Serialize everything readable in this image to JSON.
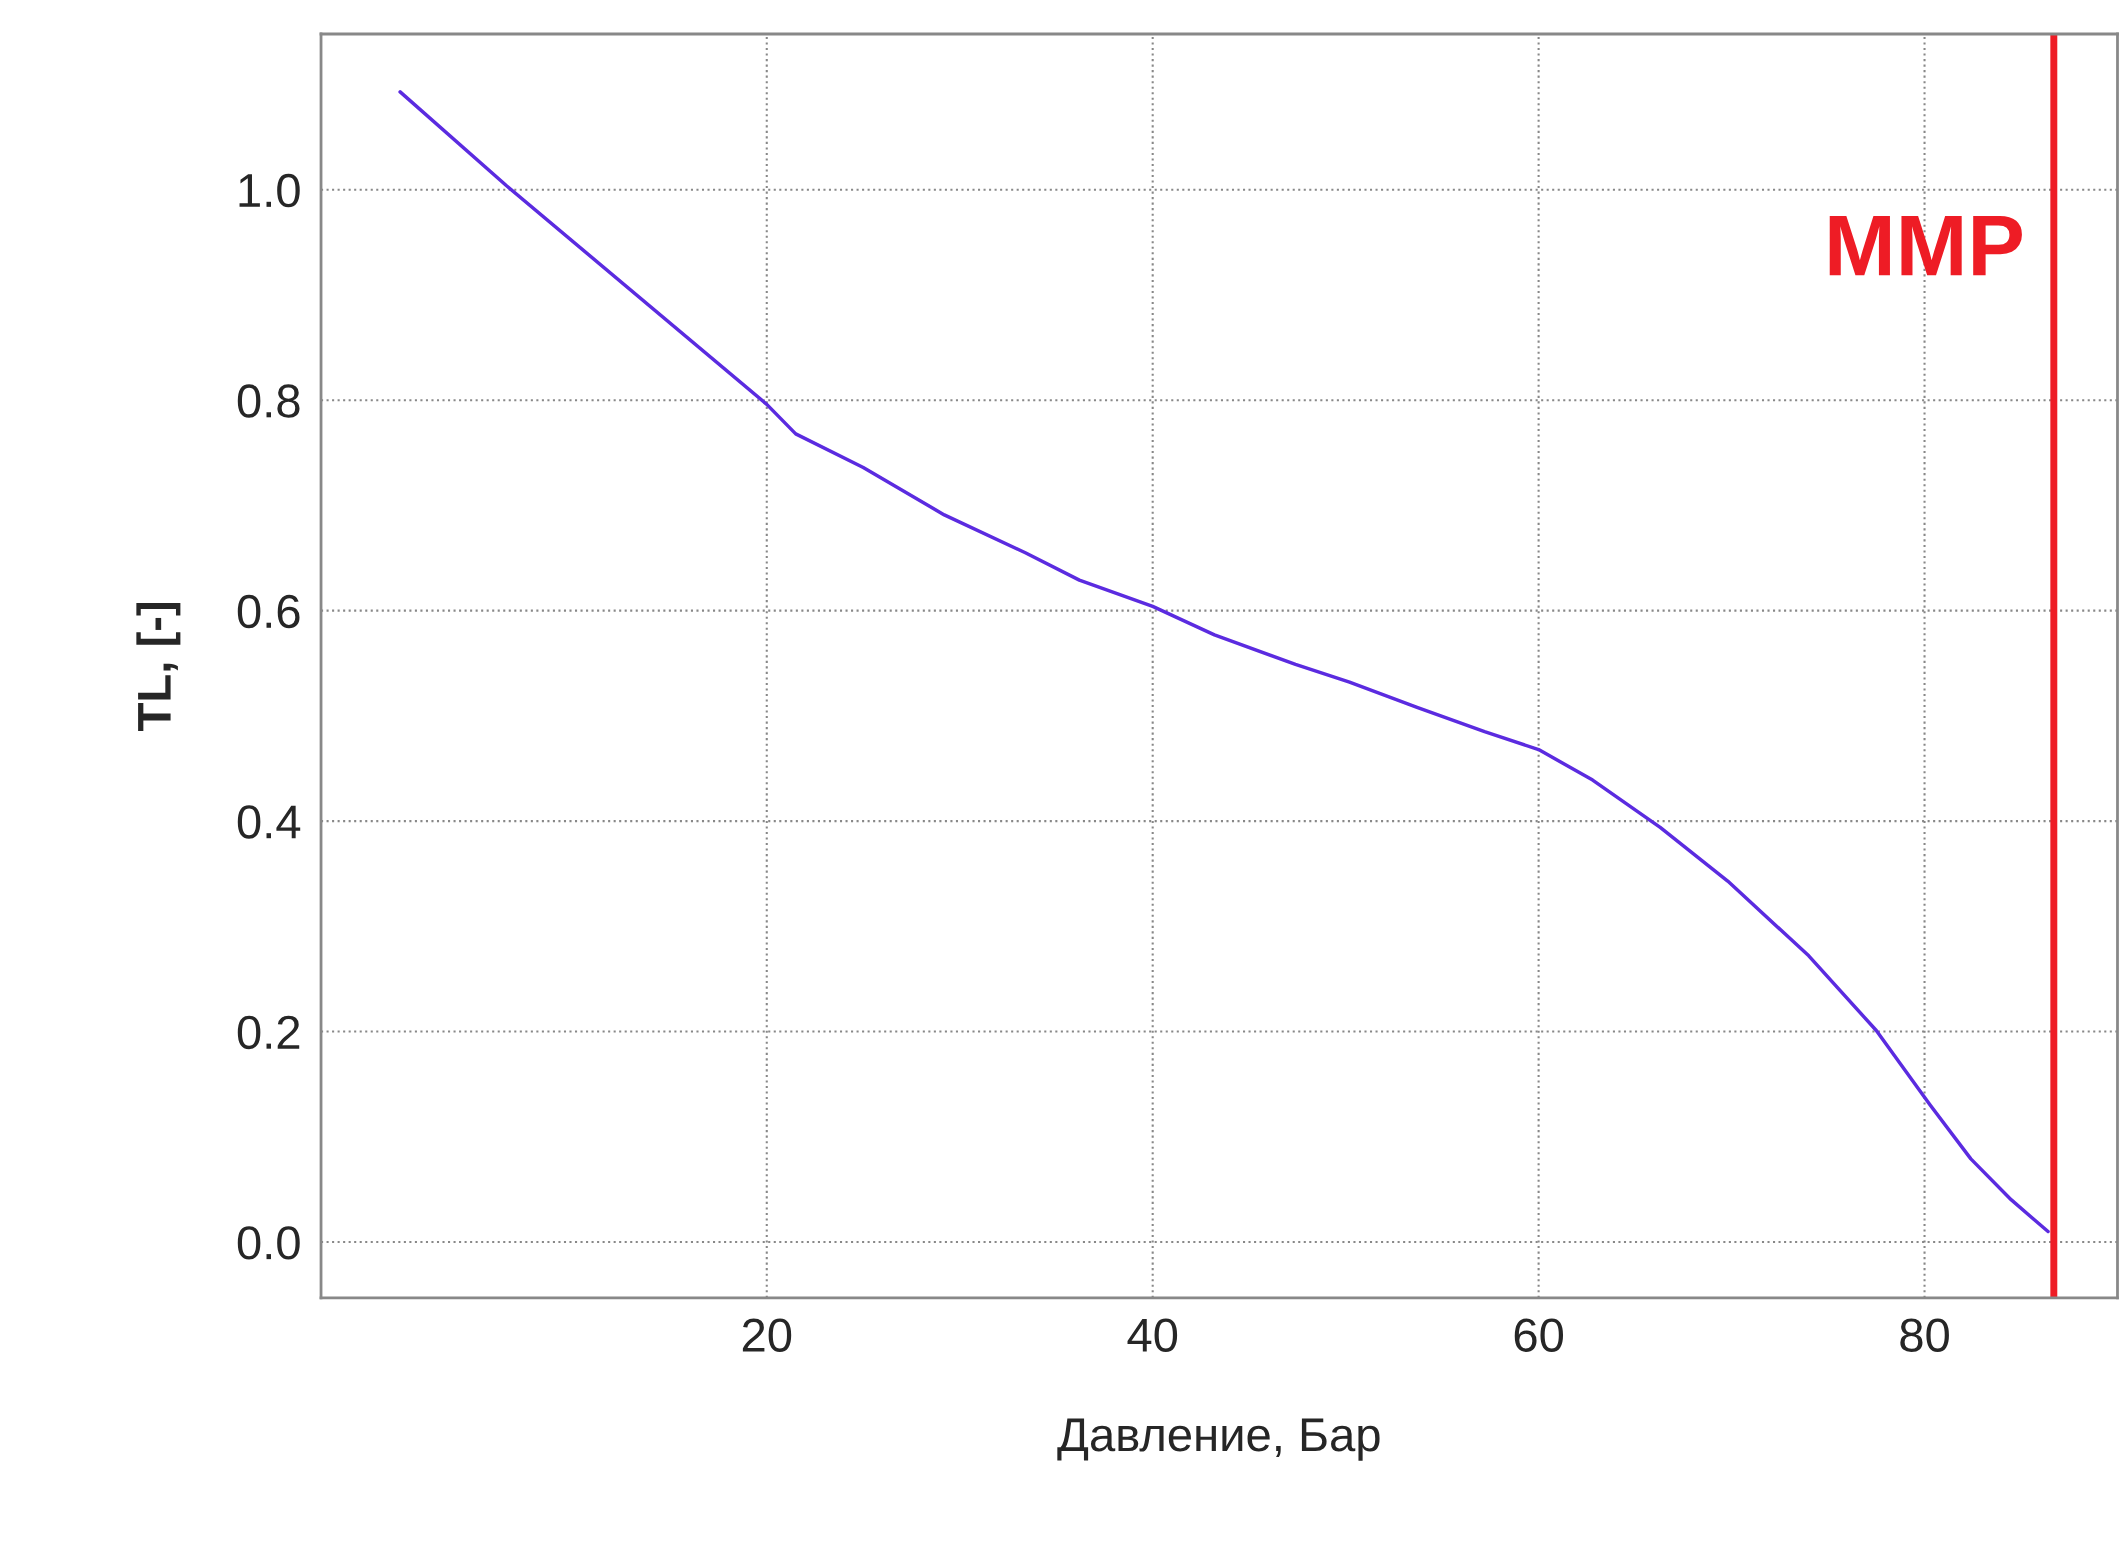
{
  "chart_data": {
    "type": "line",
    "xlabel": "Давление, Бар",
    "ylabel": "TL, [-]",
    "series": [
      {
        "color": "#5b2be0",
        "x": [
          1.0,
          6.5,
          20,
          21.5,
          25,
          29.2,
          33.4,
          36.2,
          40,
          43.2,
          47.4,
          50.2,
          53.7,
          57.2,
          60,
          62.8,
          66.3,
          69.8,
          74,
          77.5,
          80.3,
          82.4,
          84.5,
          86.4
        ],
        "values": [
          1.093,
          1.004,
          0.796,
          0.768,
          0.736,
          0.691,
          0.655,
          0.629,
          0.604,
          0.577,
          0.549,
          0.532,
          0.508,
          0.485,
          0.468,
          0.439,
          0.394,
          0.343,
          0.272,
          0.201,
          0.13,
          0.079,
          0.04,
          0.01
        ]
      }
    ],
    "ref_lines": [
      {
        "axis": "x",
        "value": 86.7,
        "label": "MMP",
        "color": "#ee1c25"
      }
    ],
    "xlim": [
      -3.1,
      90
    ],
    "ylim": [
      -0.053,
      1.148
    ],
    "xticks": [
      20,
      40,
      60,
      80
    ],
    "yticks": [
      {
        "value": 0,
        "label": "0.0"
      },
      {
        "value": 0.2,
        "label": "0.2"
      },
      {
        "value": 0.4,
        "label": "0.4"
      },
      {
        "value": 0.6,
        "label": "0.6"
      },
      {
        "value": 0.8,
        "label": "0.8"
      },
      {
        "value": 1.0,
        "label": "1.0"
      }
    ],
    "grid": true,
    "marker": "none",
    "line_style": "solid"
  }
}
